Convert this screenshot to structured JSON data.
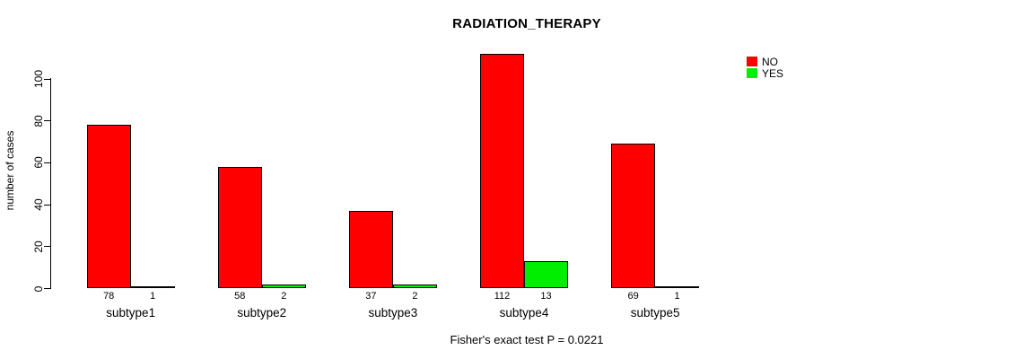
{
  "chart_data": {
    "type": "bar",
    "title": "RADIATION_THERAPY",
    "xlabel": "",
    "ylabel": "number of cases",
    "caption": "Fisher's exact test P = 0.0221",
    "categories": [
      "subtype1",
      "subtype2",
      "subtype3",
      "subtype4",
      "subtype5"
    ],
    "series": [
      {
        "name": "NO",
        "color": "#ff0000",
        "values": [
          78,
          58,
          37,
          112,
          69
        ]
      },
      {
        "name": "YES",
        "color": "#00ee00",
        "values": [
          1,
          2,
          2,
          13,
          1
        ]
      }
    ],
    "bar_value_labels": true,
    "yticks": [
      0,
      20,
      40,
      60,
      80,
      100
    ],
    "ylim": [
      0,
      116
    ],
    "grid": false,
    "legend_position": "top-right",
    "bar_style": "grouped, black 1px outlines, no gap within group"
  }
}
